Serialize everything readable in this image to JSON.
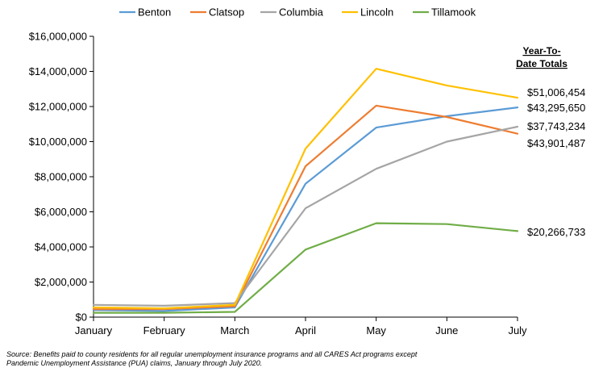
{
  "chart_data": {
    "type": "line",
    "categories": [
      "January",
      "February",
      "March",
      "April",
      "May",
      "June",
      "July"
    ],
    "ylim": [
      0,
      16000000
    ],
    "yticks": [
      "$0",
      "$2,000,000",
      "$4,000,000",
      "$6,000,000",
      "$8,000,000",
      "$10,000,000",
      "$12,000,000",
      "$14,000,000",
      "$16,000,000"
    ],
    "ytick_values": [
      0,
      2000000,
      4000000,
      6000000,
      8000000,
      10000000,
      12000000,
      14000000,
      16000000
    ],
    "grid": false,
    "legend_position": "top",
    "series": [
      {
        "name": "Benton",
        "color": "#5B9BD5",
        "values": [
          400000,
          350000,
          550000,
          7600000,
          10800000,
          11450000,
          11950000
        ]
      },
      {
        "name": "Clatsop",
        "color": "#ED7D31",
        "values": [
          450000,
          450000,
          620000,
          8600000,
          12050000,
          11400000,
          10450000
        ]
      },
      {
        "name": "Columbia",
        "color": "#A5A5A5",
        "values": [
          700000,
          650000,
          800000,
          6200000,
          8450000,
          10000000,
          10850000
        ]
      },
      {
        "name": "Lincoln",
        "color": "#FFC000",
        "values": [
          550000,
          500000,
          700000,
          9600000,
          14150000,
          13200000,
          12500000
        ]
      },
      {
        "name": "Tillamook",
        "color": "#70AD47",
        "values": [
          250000,
          250000,
          300000,
          3850000,
          5350000,
          5300000,
          4900000
        ]
      }
    ],
    "totals_title_line1": "Year-To-",
    "totals_title_line2": "Date Totals",
    "totals": [
      {
        "label": "$51,006,454"
      },
      {
        "label": "$43,295,650"
      },
      {
        "label": "$37,743,234"
      },
      {
        "label": "$43,901,487"
      },
      {
        "label": "$20,266,733"
      }
    ]
  },
  "source_line1": "Source: Benefits paid to county residents for all regular unemployment insurance programs and all CARES Act programs except",
  "source_line2": "Pandemic Unemployment Assistance (PUA) claims, January through July 2020."
}
